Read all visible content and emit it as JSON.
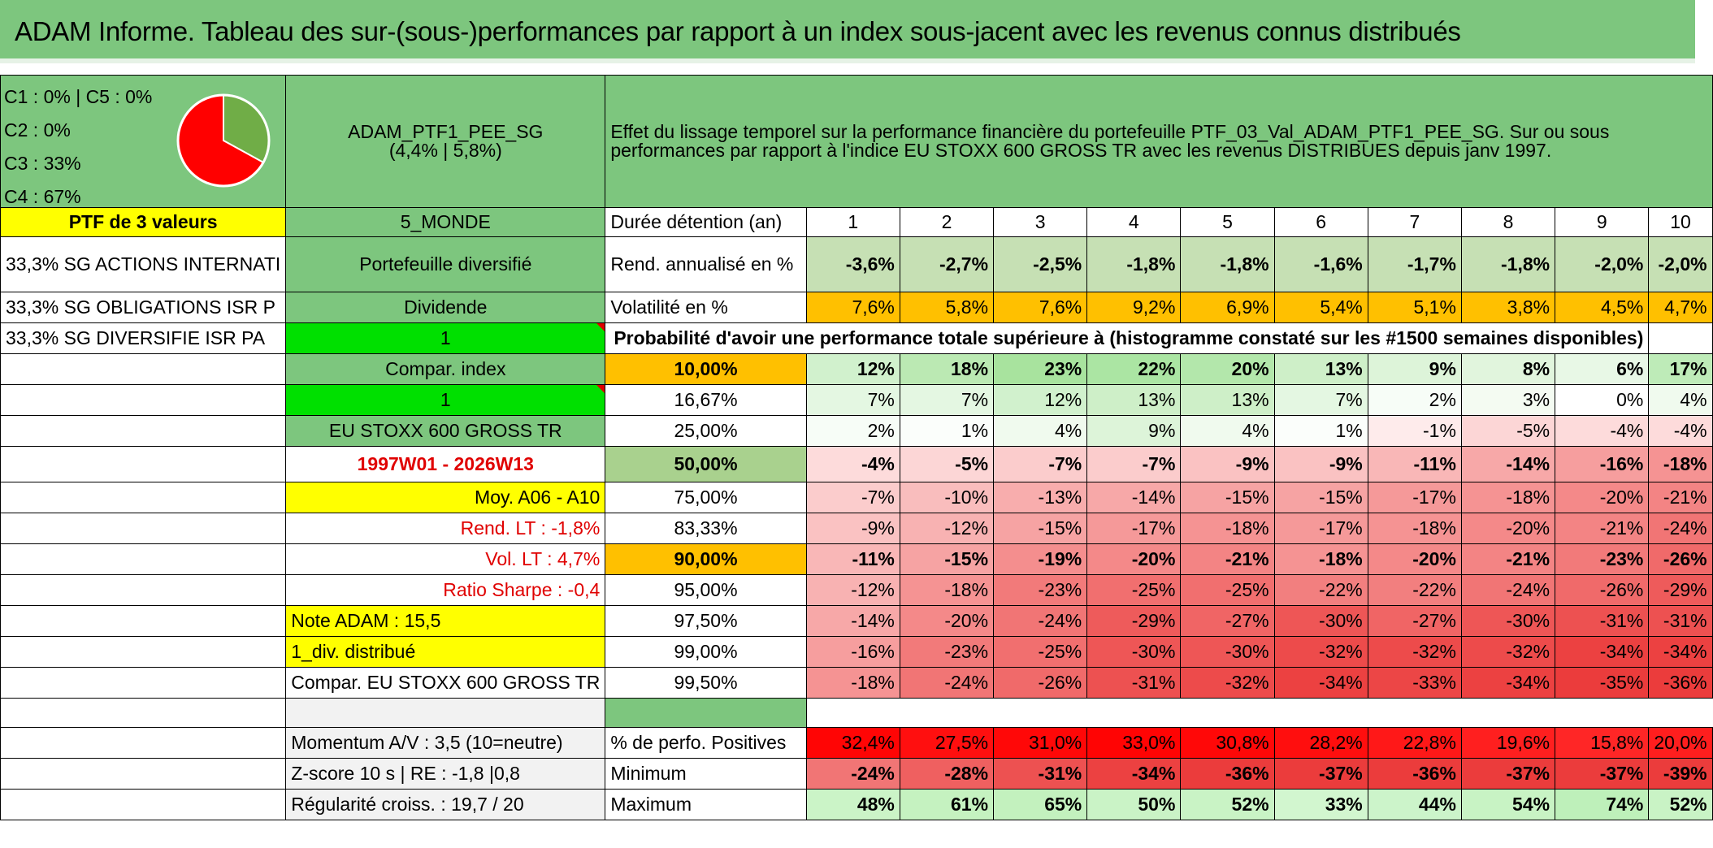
{
  "title": "ADAM Informe. Tableau des sur-(sous-)performances par rapport à un index sous-jacent avec les revenus connus distribués",
  "pie": {
    "legend": [
      "C1 : 0% | C5 : 0%",
      "C2 : 0%",
      "C3 : 33%",
      "C4 : 67%"
    ],
    "slices": [
      {
        "label": "C3",
        "value": 33,
        "color": "#70ad47"
      },
      {
        "label": "C4",
        "value": 67,
        "color": "#ff0000"
      }
    ]
  },
  "portfolio": {
    "name": "ADAM_PTF1_PEE_SG",
    "stats": "(4,4% | 5,8%)",
    "ptf_label": "PTF de 3 valeurs",
    "category": "5_MONDE"
  },
  "description": "Effet du lissage temporel sur la performance financière du portefeuille PTF_03_Val_ADAM_PTF1_PEE_SG. Sur ou sous performances par rapport à l'indice EU STOXX 600 GROSS TR avec les revenus DISTRIBUES depuis janv 1997.",
  "holdings": [
    "33,3% SG ACTIONS INTERNATI",
    "33,3% SG OBLIGATIONS ISR P",
    "33,3% SG DIVERSIFIE ISR PA"
  ],
  "mid": {
    "portefeuille": "Portefeuille diversifié",
    "dividende": "Dividende",
    "one_a": "1",
    "compar_index": "Compar. index",
    "one_b": "1",
    "index_name": "EU STOXX 600 GROSS TR",
    "period": "1997W01 - 2026W13",
    "moy": "Moy. A06 - A10",
    "rend_lt": "Rend. LT : -1,8%",
    "vol_lt": "Vol. LT : 4,7%",
    "sharpe": "Ratio Sharpe : -0,4",
    "note": "Note ADAM : 15,5",
    "div": "1_div. distribué",
    "compar_full": "Compar. EU STOXX 600 GROSS TR",
    "momentum": "Momentum A/V : 3,5 (10=neutre)",
    "zscore": "Z-score 10 s | RE : -1,8 |0,8",
    "regularite": "Régularité croiss. : 19,7 / 20"
  },
  "labels": {
    "duree": "Durée détention (an)",
    "rend": "Rend. annualisé en %",
    "vol": "Volatilité en %",
    "proba": "Probabilité d'avoir une performance totale supérieure à (histogramme constaté sur les #1500 semaines disponibles)",
    "positives": "% de perfo. Positives",
    "minimum": "Minimum",
    "maximum": "Maximum"
  },
  "years": [
    "1",
    "2",
    "3",
    "4",
    "5",
    "6",
    "7",
    "8",
    "9",
    "10"
  ],
  "rend": [
    "-3,6%",
    "-2,7%",
    "-2,5%",
    "-1,8%",
    "-1,8%",
    "-1,6%",
    "-1,7%",
    "-1,8%",
    "-2,0%",
    "-2,0%"
  ],
  "vol": [
    "7,6%",
    "5,8%",
    "7,6%",
    "9,2%",
    "6,9%",
    "5,4%",
    "5,1%",
    "3,8%",
    "4,5%",
    "4,7%"
  ],
  "prob_rows": [
    {
      "level": "10,00%",
      "values": [
        "12%",
        "18%",
        "23%",
        "22%",
        "20%",
        "13%",
        "9%",
        "8%",
        "6%",
        "17%"
      ]
    },
    {
      "level": "16,67%",
      "values": [
        "7%",
        "7%",
        "12%",
        "13%",
        "13%",
        "7%",
        "2%",
        "3%",
        "0%",
        "4%"
      ]
    },
    {
      "level": "25,00%",
      "values": [
        "2%",
        "1%",
        "4%",
        "9%",
        "4%",
        "1%",
        "-1%",
        "-5%",
        "-4%",
        "-4%"
      ]
    },
    {
      "level": "50,00%",
      "values": [
        "-4%",
        "-5%",
        "-7%",
        "-7%",
        "-9%",
        "-9%",
        "-11%",
        "-14%",
        "-16%",
        "-18%"
      ]
    },
    {
      "level": "75,00%",
      "values": [
        "-7%",
        "-10%",
        "-13%",
        "-14%",
        "-15%",
        "-15%",
        "-17%",
        "-18%",
        "-20%",
        "-21%"
      ]
    },
    {
      "level": "83,33%",
      "values": [
        "-9%",
        "-12%",
        "-15%",
        "-17%",
        "-18%",
        "-17%",
        "-18%",
        "-20%",
        "-21%",
        "-24%"
      ]
    },
    {
      "level": "90,00%",
      "values": [
        "-11%",
        "-15%",
        "-19%",
        "-20%",
        "-21%",
        "-18%",
        "-20%",
        "-21%",
        "-23%",
        "-26%"
      ]
    },
    {
      "level": "95,00%",
      "values": [
        "-12%",
        "-18%",
        "-23%",
        "-25%",
        "-25%",
        "-22%",
        "-22%",
        "-24%",
        "-26%",
        "-29%"
      ]
    },
    {
      "level": "97,50%",
      "values": [
        "-14%",
        "-20%",
        "-24%",
        "-29%",
        "-27%",
        "-30%",
        "-27%",
        "-30%",
        "-31%",
        "-31%"
      ]
    },
    {
      "level": "99,00%",
      "values": [
        "-16%",
        "-23%",
        "-25%",
        "-30%",
        "-30%",
        "-32%",
        "-32%",
        "-32%",
        "-34%",
        "-34%"
      ]
    },
    {
      "level": "99,50%",
      "values": [
        "-18%",
        "-24%",
        "-26%",
        "-31%",
        "-32%",
        "-34%",
        "-33%",
        "-34%",
        "-35%",
        "-36%"
      ]
    }
  ],
  "positives": [
    "32,4%",
    "27,5%",
    "31,0%",
    "33,0%",
    "30,8%",
    "28,2%",
    "22,8%",
    "19,6%",
    "15,8%",
    "20,0%"
  ],
  "minimum": [
    "-24%",
    "-28%",
    "-31%",
    "-34%",
    "-36%",
    "-37%",
    "-36%",
    "-37%",
    "-37%",
    "-39%"
  ],
  "maximum": [
    "48%",
    "61%",
    "65%",
    "50%",
    "52%",
    "33%",
    "44%",
    "54%",
    "74%",
    "52%"
  ],
  "colors": {
    "header_green": "#7dc67e",
    "yellow": "#ffff00",
    "bright_green": "#00e000",
    "orange": "#ffc000",
    "red": "#ff0000"
  }
}
